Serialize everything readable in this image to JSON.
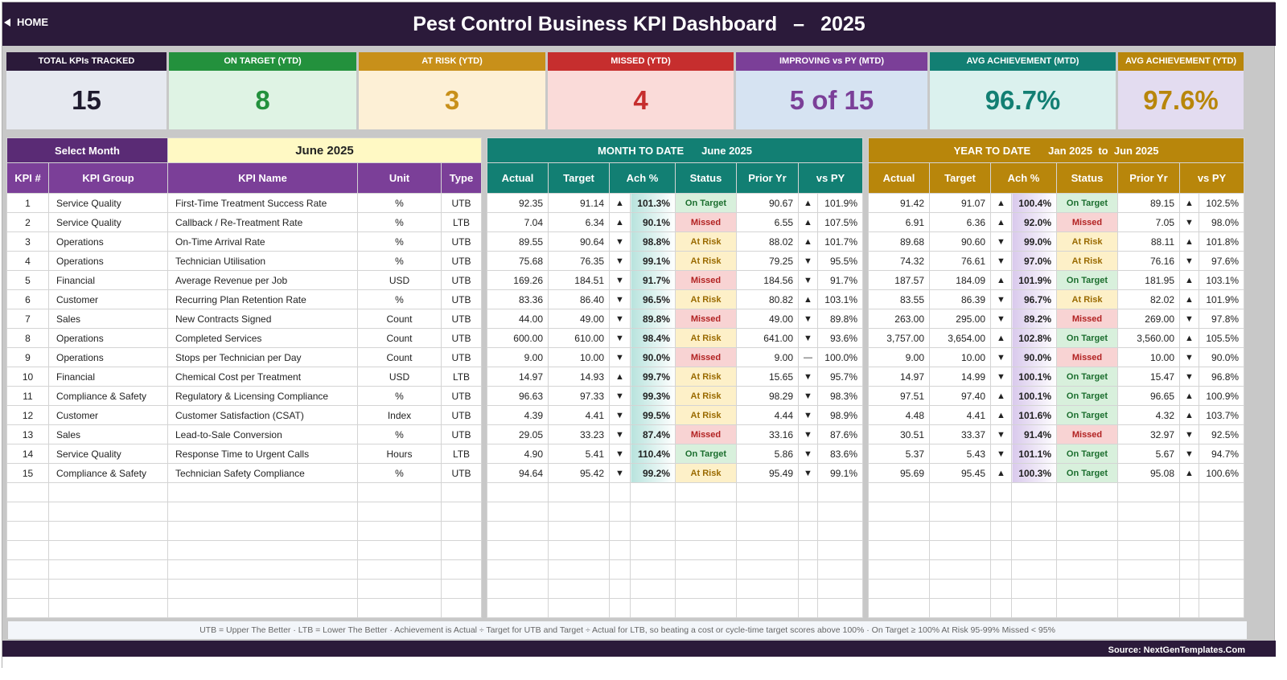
{
  "header": {
    "home_label": "HOME",
    "title": "Pest Control Business KPI Dashboard",
    "separator": "–",
    "year": "2025"
  },
  "cards": [
    {
      "label": "TOTAL KPIs TRACKED",
      "value": "15",
      "head_color": "#2b1a3a",
      "body_color": "#e6e9f0",
      "value_color": "#1e1a2e"
    },
    {
      "label": "ON TARGET (YTD)",
      "value": "8",
      "head_color": "#23913d",
      "body_color": "#dff3e4",
      "value_color": "#23913d"
    },
    {
      "label": "AT RISK (YTD)",
      "value": "3",
      "head_color": "#c8901a",
      "body_color": "#fdf0d6",
      "value_color": "#c8901a"
    },
    {
      "label": "MISSED (YTD)",
      "value": "4",
      "head_color": "#c62e2e",
      "body_color": "#fadbd9",
      "value_color": "#c62e2e"
    },
    {
      "label": "IMPROVING vs PY (MTD)",
      "value": "5 of 15",
      "head_color": "#7b3f98",
      "body_color": "#d6e3f2",
      "value_color": "#7b3f98"
    },
    {
      "label": "AVG ACHIEVEMENT (MTD)",
      "value": "96.7%",
      "head_color": "#127f73",
      "body_color": "#dbf1ee",
      "value_color": "#127f73"
    },
    {
      "label": "AVG ACHIEVEMENT (YTD)",
      "value": "97.6%",
      "head_color": "#b8860b",
      "body_color": "#e3dcf0",
      "value_color": "#b8860b"
    }
  ],
  "selector": {
    "label": "Select Month",
    "value": "June 2025"
  },
  "left_headers": {
    "kpi_num": "KPI #",
    "group": "KPI Group",
    "name": "KPI Name",
    "unit": "Unit",
    "type": "Type"
  },
  "mtd": {
    "title": "MONTH TO DATE",
    "period": "June 2025"
  },
  "ytd": {
    "title": "YEAR TO DATE",
    "period_from": "Jan 2025",
    "to": "to",
    "period_to": "Jun 2025"
  },
  "metric_headers": {
    "actual": "Actual",
    "target": "Target",
    "ach": "Ach %",
    "status": "Status",
    "prior": "Prior Yr",
    "vspy": "vs PY"
  },
  "kpis": [
    {
      "n": "1",
      "group": "Service Quality",
      "name": "First-Time Treatment Success Rate",
      "unit": "%",
      "type": "UTB",
      "m": {
        "actual": "92.35",
        "target": "91.14",
        "ach_dir": "up",
        "ach": "101.3%",
        "status": "On Target",
        "prior": "90.67",
        "py_dir": "up",
        "vspy": "101.9%"
      },
      "y": {
        "actual": "91.42",
        "target": "91.07",
        "ach_dir": "up",
        "ach": "100.4%",
        "status": "On Target",
        "prior": "89.15",
        "py_dir": "up",
        "vspy": "102.5%"
      }
    },
    {
      "n": "2",
      "group": "Service Quality",
      "name": "Callback / Re-Treatment Rate",
      "unit": "%",
      "type": "LTB",
      "m": {
        "actual": "7.04",
        "target": "6.34",
        "ach_dir": "upr",
        "ach": "90.1%",
        "status": "Missed",
        "prior": "6.55",
        "py_dir": "upr",
        "vspy": "107.5%"
      },
      "y": {
        "actual": "6.91",
        "target": "6.36",
        "ach_dir": "upr",
        "ach": "92.0%",
        "status": "Missed",
        "prior": "7.05",
        "py_dir": "dng",
        "vspy": "98.0%"
      }
    },
    {
      "n": "3",
      "group": "Operations",
      "name": "On-Time Arrival Rate",
      "unit": "%",
      "type": "UTB",
      "m": {
        "actual": "89.55",
        "target": "90.64",
        "ach_dir": "dn",
        "ach": "98.8%",
        "status": "At Risk",
        "prior": "88.02",
        "py_dir": "up",
        "vspy": "101.7%"
      },
      "y": {
        "actual": "89.68",
        "target": "90.60",
        "ach_dir": "dn",
        "ach": "99.0%",
        "status": "At Risk",
        "prior": "88.11",
        "py_dir": "up",
        "vspy": "101.8%"
      }
    },
    {
      "n": "4",
      "group": "Operations",
      "name": "Technician Utilisation",
      "unit": "%",
      "type": "UTB",
      "m": {
        "actual": "75.68",
        "target": "76.35",
        "ach_dir": "dn",
        "ach": "99.1%",
        "status": "At Risk",
        "prior": "79.25",
        "py_dir": "dn",
        "vspy": "95.5%"
      },
      "y": {
        "actual": "74.32",
        "target": "76.61",
        "ach_dir": "dn",
        "ach": "97.0%",
        "status": "At Risk",
        "prior": "76.16",
        "py_dir": "dn",
        "vspy": "97.6%"
      }
    },
    {
      "n": "5",
      "group": "Financial",
      "name": "Average Revenue per Job",
      "unit": "USD",
      "type": "UTB",
      "m": {
        "actual": "169.26",
        "target": "184.51",
        "ach_dir": "dn",
        "ach": "91.7%",
        "status": "Missed",
        "prior": "184.56",
        "py_dir": "dn",
        "vspy": "91.7%"
      },
      "y": {
        "actual": "187.57",
        "target": "184.09",
        "ach_dir": "up",
        "ach": "101.9%",
        "status": "On Target",
        "prior": "181.95",
        "py_dir": "up",
        "vspy": "103.1%"
      }
    },
    {
      "n": "6",
      "group": "Customer",
      "name": "Recurring Plan Retention Rate",
      "unit": "%",
      "type": "UTB",
      "m": {
        "actual": "83.36",
        "target": "86.40",
        "ach_dir": "dn",
        "ach": "96.5%",
        "status": "At Risk",
        "prior": "80.82",
        "py_dir": "up",
        "vspy": "103.1%"
      },
      "y": {
        "actual": "83.55",
        "target": "86.39",
        "ach_dir": "dn",
        "ach": "96.7%",
        "status": "At Risk",
        "prior": "82.02",
        "py_dir": "up",
        "vspy": "101.9%"
      }
    },
    {
      "n": "7",
      "group": "Sales",
      "name": "New Contracts Signed",
      "unit": "Count",
      "type": "UTB",
      "m": {
        "actual": "44.00",
        "target": "49.00",
        "ach_dir": "dn",
        "ach": "89.8%",
        "status": "Missed",
        "prior": "49.00",
        "py_dir": "dn",
        "vspy": "89.8%"
      },
      "y": {
        "actual": "263.00",
        "target": "295.00",
        "ach_dir": "dn",
        "ach": "89.2%",
        "status": "Missed",
        "prior": "269.00",
        "py_dir": "dn",
        "vspy": "97.8%"
      }
    },
    {
      "n": "8",
      "group": "Operations",
      "name": "Completed Services",
      "unit": "Count",
      "type": "UTB",
      "m": {
        "actual": "600.00",
        "target": "610.00",
        "ach_dir": "dn",
        "ach": "98.4%",
        "status": "At Risk",
        "prior": "641.00",
        "py_dir": "dn",
        "vspy": "93.6%"
      },
      "y": {
        "actual": "3,757.00",
        "target": "3,654.00",
        "ach_dir": "up",
        "ach": "102.8%",
        "status": "On Target",
        "prior": "3,560.00",
        "py_dir": "up",
        "vspy": "105.5%"
      }
    },
    {
      "n": "9",
      "group": "Operations",
      "name": "Stops per Technician per Day",
      "unit": "Count",
      "type": "UTB",
      "m": {
        "actual": "9.00",
        "target": "10.00",
        "ach_dir": "dn",
        "ach": "90.0%",
        "status": "Missed",
        "prior": "9.00",
        "py_dir": "flat",
        "vspy": "100.0%"
      },
      "y": {
        "actual": "9.00",
        "target": "10.00",
        "ach_dir": "dn",
        "ach": "90.0%",
        "status": "Missed",
        "prior": "10.00",
        "py_dir": "dn",
        "vspy": "90.0%"
      }
    },
    {
      "n": "10",
      "group": "Financial",
      "name": "Chemical Cost per Treatment",
      "unit": "USD",
      "type": "LTB",
      "m": {
        "actual": "14.97",
        "target": "14.93",
        "ach_dir": "upr",
        "ach": "99.7%",
        "status": "At Risk",
        "prior": "15.65",
        "py_dir": "dng",
        "vspy": "95.7%"
      },
      "y": {
        "actual": "14.97",
        "target": "14.99",
        "ach_dir": "dng",
        "ach": "100.1%",
        "status": "On Target",
        "prior": "15.47",
        "py_dir": "dng",
        "vspy": "96.8%"
      }
    },
    {
      "n": "11",
      "group": "Compliance & Safety",
      "name": "Regulatory & Licensing Compliance",
      "unit": "%",
      "type": "UTB",
      "m": {
        "actual": "96.63",
        "target": "97.33",
        "ach_dir": "dn",
        "ach": "99.3%",
        "status": "At Risk",
        "prior": "98.29",
        "py_dir": "dn",
        "vspy": "98.3%"
      },
      "y": {
        "actual": "97.51",
        "target": "97.40",
        "ach_dir": "up",
        "ach": "100.1%",
        "status": "On Target",
        "prior": "96.65",
        "py_dir": "up",
        "vspy": "100.9%"
      }
    },
    {
      "n": "12",
      "group": "Customer",
      "name": "Customer Satisfaction (CSAT)",
      "unit": "Index",
      "type": "UTB",
      "m": {
        "actual": "4.39",
        "target": "4.41",
        "ach_dir": "dn",
        "ach": "99.5%",
        "status": "At Risk",
        "prior": "4.44",
        "py_dir": "dn",
        "vspy": "98.9%"
      },
      "y": {
        "actual": "4.48",
        "target": "4.41",
        "ach_dir": "up",
        "ach": "101.6%",
        "status": "On Target",
        "prior": "4.32",
        "py_dir": "up",
        "vspy": "103.7%"
      }
    },
    {
      "n": "13",
      "group": "Sales",
      "name": "Lead-to-Sale Conversion",
      "unit": "%",
      "type": "UTB",
      "m": {
        "actual": "29.05",
        "target": "33.23",
        "ach_dir": "dn",
        "ach": "87.4%",
        "status": "Missed",
        "prior": "33.16",
        "py_dir": "dn",
        "vspy": "87.6%"
      },
      "y": {
        "actual": "30.51",
        "target": "33.37",
        "ach_dir": "dn",
        "ach": "91.4%",
        "status": "Missed",
        "prior": "32.97",
        "py_dir": "dn",
        "vspy": "92.5%"
      }
    },
    {
      "n": "14",
      "group": "Service Quality",
      "name": "Response Time to Urgent Calls",
      "unit": "Hours",
      "type": "LTB",
      "m": {
        "actual": "4.90",
        "target": "5.41",
        "ach_dir": "dng",
        "ach": "110.4%",
        "status": "On Target",
        "prior": "5.86",
        "py_dir": "dng",
        "vspy": "83.6%"
      },
      "y": {
        "actual": "5.37",
        "target": "5.43",
        "ach_dir": "dng",
        "ach": "101.1%",
        "status": "On Target",
        "prior": "5.67",
        "py_dir": "dng",
        "vspy": "94.7%"
      }
    },
    {
      "n": "15",
      "group": "Compliance & Safety",
      "name": "Technician Safety Compliance",
      "unit": "%",
      "type": "UTB",
      "m": {
        "actual": "94.64",
        "target": "95.42",
        "ach_dir": "dn",
        "ach": "99.2%",
        "status": "At Risk",
        "prior": "95.49",
        "py_dir": "dn",
        "vspy": "99.1%"
      },
      "y": {
        "actual": "95.69",
        "target": "95.45",
        "ach_dir": "up",
        "ach": "100.3%",
        "status": "On Target",
        "prior": "95.08",
        "py_dir": "up",
        "vspy": "100.6%"
      }
    }
  ],
  "legend": "UTB = Upper The Better   ·   LTB = Lower The Better   ·   Achievement is Actual ÷ Target for UTB and Target ÷ Actual for LTB, so beating a cost or cycle-time target scores above 100%   ·   On Target ≥ 100%   At Risk 95-99%   Missed < 95%",
  "source": "Source: NextGenTemplates.Com"
}
